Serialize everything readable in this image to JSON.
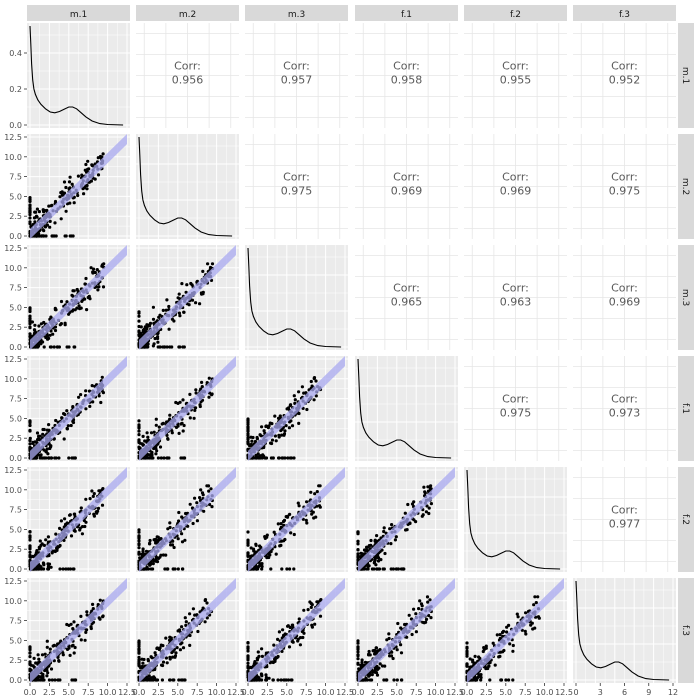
{
  "chart_data": {
    "type": "scatter-matrix",
    "variables": [
      "m.1",
      "m.2",
      "m.3",
      "f.1",
      "f.2",
      "f.3"
    ],
    "corr_label": "Corr:",
    "correlations": [
      {
        "row": "m.1",
        "col": "m.2",
        "value": "0.956"
      },
      {
        "row": "m.1",
        "col": "m.3",
        "value": "0.957"
      },
      {
        "row": "m.1",
        "col": "f.1",
        "value": "0.958"
      },
      {
        "row": "m.1",
        "col": "f.2",
        "value": "0.955"
      },
      {
        "row": "m.1",
        "col": "f.3",
        "value": "0.952"
      },
      {
        "row": "m.2",
        "col": "m.3",
        "value": "0.975"
      },
      {
        "row": "m.2",
        "col": "f.1",
        "value": "0.969"
      },
      {
        "row": "m.2",
        "col": "f.2",
        "value": "0.969"
      },
      {
        "row": "m.2",
        "col": "f.3",
        "value": "0.975"
      },
      {
        "row": "m.3",
        "col": "f.1",
        "value": "0.965"
      },
      {
        "row": "m.3",
        "col": "f.2",
        "value": "0.963"
      },
      {
        "row": "m.3",
        "col": "f.3",
        "value": "0.969"
      },
      {
        "row": "f.1",
        "col": "f.2",
        "value": "0.975"
      },
      {
        "row": "f.1",
        "col": "f.3",
        "value": "0.973"
      },
      {
        "row": "f.2",
        "col": "f.3",
        "value": "0.977"
      }
    ],
    "x_range": [
      0,
      12.5
    ],
    "y_range": [
      0,
      12.5
    ],
    "x_ticks": [
      "0.0",
      "2.5",
      "5.0",
      "7.5",
      "10.0",
      "12.5"
    ],
    "y_ticks": [
      "0.0",
      "2.5",
      "5.0",
      "7.5",
      "10.0",
      "12.5"
    ],
    "last_x_range": [
      0,
      12
    ],
    "last_x_ticks": [
      "0",
      "3",
      "6",
      "9",
      "12"
    ],
    "density_y_range": [
      0,
      0.55
    ],
    "density_y_ticks": [
      "0.0",
      "0.2",
      "0.4"
    ],
    "density_curve": {
      "x": [
        0.0,
        0.1,
        0.2,
        0.35,
        0.5,
        0.7,
        1.0,
        1.4,
        2.0,
        2.6,
        3.2,
        3.8,
        4.4,
        5.0,
        5.5,
        6.0,
        6.6,
        7.2,
        8.0,
        9.0,
        10.0,
        12.0
      ],
      "y": [
        0.55,
        0.45,
        0.34,
        0.25,
        0.2,
        0.17,
        0.14,
        0.115,
        0.09,
        0.072,
        0.068,
        0.075,
        0.088,
        0.1,
        0.1,
        0.09,
        0.068,
        0.045,
        0.022,
        0.008,
        0.003,
        0.0
      ]
    },
    "fit_band_color": "#aaaaf0",
    "point_color": "#000000",
    "panel_background": "#ebebeb",
    "strip_background": "#d9d9d9",
    "grid": true
  }
}
